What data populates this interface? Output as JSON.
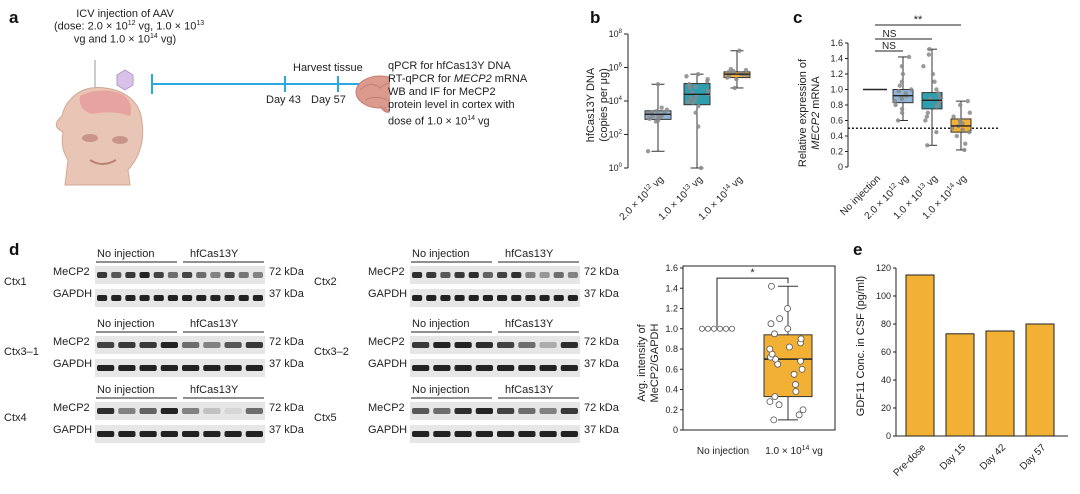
{
  "panels": {
    "a": "a",
    "b": "b",
    "c": "c",
    "d": "d",
    "e": "e"
  },
  "a": {
    "injection_line1": "ICV injection of AAV",
    "injection_line2": "(dose: 2.0 × 10",
    "injection_line2_sup": "12",
    "injection_line2b": " vg, 1.0 × 10",
    "injection_line2b_sup": "13",
    "injection_line3": "vg and 1.0 × 10",
    "injection_line3_sup": "14",
    "injection_line3b": " vg)",
    "harvest": "Harvest tissue",
    "day43": "Day 43",
    "day57": "Day 57",
    "assay1": "qPCR for hfCas13Y DNA",
    "assay2_pre": "RT-qPCR for ",
    "assay2_gene": "MECP2",
    "assay2_post": " mRNA",
    "assay3": "WB and IF for MeCP2",
    "assay4": "protein level in cortex with",
    "assay5_pre": "dose of 1.0 × 10",
    "assay5_sup": "14",
    "assay5_post": " vg"
  },
  "b": {
    "ylabel1": "hfCas13Y DNA",
    "ylabel2": "(copies per μg)",
    "yticks": [
      {
        "base": "10",
        "exp": "0"
      },
      {
        "base": "10",
        "exp": "2"
      },
      {
        "base": "10",
        "exp": "4"
      },
      {
        "base": "10",
        "exp": "6"
      },
      {
        "base": "10",
        "exp": "8"
      }
    ],
    "xcats": [
      {
        "pre": "2.0 × 10",
        "sup": "12",
        "post": " vg"
      },
      {
        "pre": "1.0 × 10",
        "sup": "13",
        "post": " vg"
      },
      {
        "pre": "1.0 × 10",
        "sup": "14",
        "post": " vg"
      }
    ]
  },
  "c": {
    "ylabel1": "Relative expression of",
    "ylabel2_gene": "MECP2",
    "ylabel2_post": " mRNA",
    "yticks": [
      "0",
      "0.2",
      "0.4",
      "0.6",
      "0.8",
      "1.0",
      "1.2",
      "1.4",
      "1.6"
    ],
    "xcats": [
      {
        "pre": "No injection",
        "sup": "",
        "post": ""
      },
      {
        "pre": "2.0 × 10",
        "sup": "12",
        "post": " vg"
      },
      {
        "pre": "1.0 × 10",
        "sup": "13",
        "post": " vg"
      },
      {
        "pre": "1.0 × 10",
        "sup": "14",
        "post": " vg"
      }
    ],
    "sig_top": "**",
    "sig_ns1": "NS",
    "sig_ns2": "NS"
  },
  "d": {
    "rows": [
      {
        "name": "Ctx1",
        "left": "No injection",
        "right": "hfCas13Y"
      },
      {
        "name": "Ctx2",
        "left": "No injection",
        "right": "hfCas13Y"
      },
      {
        "name": "Ctx3–1",
        "left": "No injection",
        "right": "hfCas13Y"
      },
      {
        "name": "Ctx3–2",
        "left": "No injection",
        "right": "hfCas13Y"
      },
      {
        "name": "Ctx4",
        "left": "No injection",
        "right": "hfCas13Y"
      },
      {
        "name": "Ctx5",
        "left": "No injection",
        "right": "hfCas13Y"
      }
    ],
    "mecp2": "MeCP2",
    "gapdh": "GAPDH",
    "kda72": "72 kDa",
    "kda37": "37 kDa",
    "plot": {
      "ylabel1": "Avg. intensity of",
      "ylabel2": "MeCP2/GAPDH",
      "yticks": [
        "0",
        "0.2",
        "0.4",
        "0.6",
        "0.8",
        "1.0",
        "1.2",
        "1.4",
        "1.6"
      ],
      "xcat1": "No injection",
      "xcat2_pre": "1.0 × 10",
      "xcat2_sup": "14",
      "xcat2_post": " vg",
      "sig": "*"
    }
  },
  "e": {
    "ylabel": "GDF11 Conc. in CSF (pg/ml)",
    "yticks": [
      "0",
      "20",
      "40",
      "60",
      "80",
      "100",
      "120"
    ]
  },
  "chart_data": [
    {
      "panel": "b",
      "type": "box",
      "yscale": "log10",
      "ylim": [
        1,
        100000000
      ],
      "categories": [
        "2.0 × 10^12 vg",
        "1.0 × 10^13 vg",
        "1.0 × 10^14 vg"
      ],
      "box": [
        {
          "whisker_low": 10,
          "q1": 800,
          "median": 1600,
          "q3": 2600,
          "whisker_high": 100000
        },
        {
          "whisker_low": 1,
          "q1": 6000,
          "median": 25000,
          "q3": 110000,
          "whisker_high": 400000
        },
        {
          "whisker_low": 60000,
          "q1": 250000,
          "median": 400000,
          "q3": 550000,
          "whisker_high": 10000000
        }
      ],
      "color": [
        "#8fb3d6",
        "#2f9fb0",
        "#f2b134"
      ]
    },
    {
      "panel": "c",
      "type": "box",
      "ylim": [
        0,
        1.6
      ],
      "categories": [
        "No injection",
        "2.0 × 10^12 vg",
        "1.0 × 10^13 vg",
        "1.0 × 10^14 vg"
      ],
      "box": [
        {
          "whisker_low": 1.0,
          "q1": 1.0,
          "median": 1.0,
          "q3": 1.0,
          "whisker_high": 1.0
        },
        {
          "whisker_low": 0.6,
          "q1": 0.83,
          "median": 0.92,
          "q3": 1.0,
          "whisker_high": 1.42
        },
        {
          "whisker_low": 0.28,
          "q1": 0.75,
          "median": 0.86,
          "q3": 0.96,
          "whisker_high": 1.52
        },
        {
          "whisker_low": 0.22,
          "q1": 0.45,
          "median": 0.53,
          "q3": 0.62,
          "whisker_high": 0.85
        }
      ],
      "reference_line": 0.5,
      "color": [
        "#ffffff",
        "#8fb3d6",
        "#2f9fb0",
        "#f2b134"
      ]
    },
    {
      "panel": "d",
      "type": "box",
      "ylim": [
        0,
        1.6
      ],
      "categories": [
        "No injection",
        "1.0 × 10^14 vg"
      ],
      "points_no_injection": [
        1.0,
        1.0,
        1.0,
        1.0,
        1.0,
        1.0
      ],
      "box": {
        "whisker_low": 0.1,
        "q1": 0.33,
        "median": 0.7,
        "q3": 0.94,
        "whisker_high": 1.42
      },
      "points_treated": [
        0.1,
        0.15,
        0.2,
        0.25,
        0.28,
        0.33,
        0.38,
        0.45,
        0.55,
        0.6,
        0.65,
        0.68,
        0.7,
        0.72,
        0.75,
        0.8,
        0.82,
        0.86,
        0.9,
        0.95,
        1.0,
        1.05,
        1.1,
        1.2,
        1.42
      ],
      "color": "#f2b134"
    },
    {
      "panel": "e",
      "type": "bar",
      "categories": [
        "Pre-dose",
        "Day 15",
        "Day 42",
        "Day 57"
      ],
      "values": [
        115,
        73,
        75,
        80
      ],
      "ylim": [
        0,
        120
      ],
      "color": "#f2b134"
    }
  ]
}
